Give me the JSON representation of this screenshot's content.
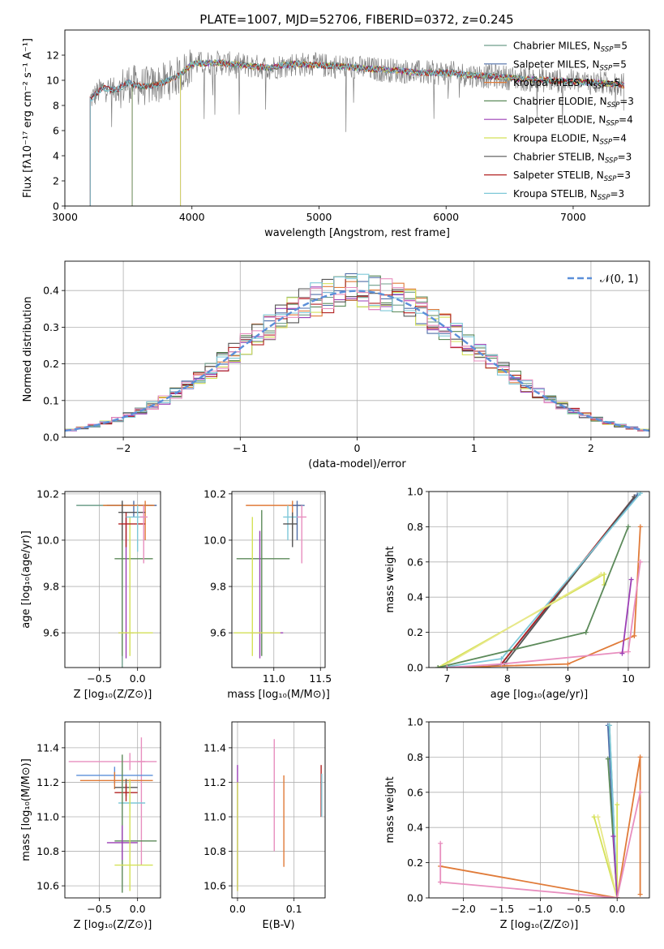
{
  "title": "PLATE=1007, MJD=52706, FIBERID=0372, z=0.245",
  "legend_colors": {
    "Chabrier MILES": "#6e9e8a",
    "Salpeter MILES": "#4f6ea8",
    "Kroupa MILES": "#e07b39",
    "Chabrier ELODIE": "#5c8a5a",
    "Salpeter ELODIE": "#9b3fb5",
    "Kroupa ELODIE": "#d4e157",
    "Chabrier STELIB": "#555555",
    "Salpeter STELIB": "#b22222",
    "Kroupa STELIB": "#7ec8d8"
  },
  "chart_data": [
    {
      "type": "line",
      "id": "spectrum",
      "xlabel": "wavelength [Angstrom, rest frame]",
      "ylabel": "Flux [fλ10⁻¹⁷ erg cm⁻² s⁻¹ A⁻¹]",
      "xlim": [
        3000,
        7600
      ],
      "ylim": [
        0,
        14
      ],
      "xticks": [
        "3000",
        "4000",
        "5000",
        "6000",
        "7000"
      ],
      "xtick_values": [
        3000,
        4000,
        5000,
        6000,
        7000
      ],
      "yticks": [
        "0",
        "2",
        "4",
        "6",
        "8",
        "10",
        "12"
      ],
      "ytick_values": [
        0,
        2,
        4,
        6,
        8,
        10,
        12
      ],
      "grid": false,
      "legend_position": "upper right",
      "legend": [
        {
          "name": "Chabrier MILES, N",
          "sub": "SSP",
          "suffix": "=5",
          "color": "#6e9e8a"
        },
        {
          "name": "Salpeter MILES, N",
          "sub": "SSP",
          "suffix": "=5",
          "color": "#4f6ea8"
        },
        {
          "name": "Kroupa MILES, N",
          "sub": "SSP",
          "suffix": "=5",
          "color": "#e07b39"
        },
        {
          "name": "Chabrier ELODIE, N",
          "sub": "SSP",
          "suffix": "=3",
          "color": "#5c8a5a"
        },
        {
          "name": "Salpeter ELODIE, N",
          "sub": "SSP",
          "suffix": "=4",
          "color": "#9b3fb5"
        },
        {
          "name": "Kroupa ELODIE, N",
          "sub": "SSP",
          "suffix": "=4",
          "color": "#d4e157"
        },
        {
          "name": "Chabrier STELIB, N",
          "sub": "SSP",
          "suffix": "=3",
          "color": "#555555"
        },
        {
          "name": "Salpeter STELIB, N",
          "sub": "SSP",
          "suffix": "=3",
          "color": "#b22222"
        },
        {
          "name": "Kroupa STELIB, N",
          "sub": "SSP",
          "suffix": "=3",
          "color": "#7ec8d8"
        }
      ],
      "observed_color": "#808080",
      "model_shape": {
        "x": [
          3200,
          3300,
          3400,
          3500,
          3600,
          3700,
          3800,
          3900,
          4000,
          4200,
          4400,
          4600,
          4800,
          5000,
          5200,
          5400,
          5600,
          5800,
          6000,
          6200,
          6400,
          6600,
          6800,
          7000,
          7200,
          7400
        ],
        "y": [
          8.5,
          9.4,
          9.2,
          9.8,
          9.5,
          9.6,
          9.9,
          10.4,
          11.3,
          11.4,
          11.2,
          11.0,
          11.3,
          11.2,
          11.1,
          10.9,
          10.8,
          10.6,
          10.6,
          10.4,
          10.3,
          10.1,
          10.0,
          9.9,
          9.8,
          9.6
        ]
      },
      "model_starts": [
        3200,
        3200,
        3530,
        3530,
        3910,
        3910,
        3200,
        3200,
        3200
      ]
    },
    {
      "type": "bar",
      "id": "residual-histogram",
      "xlabel": "(data-model)/error",
      "ylabel": "Normed distribution",
      "xlim": [
        -2.5,
        2.5
      ],
      "ylim": [
        0,
        0.48
      ],
      "xticks": [
        "−2",
        "−1",
        "0",
        "1",
        "2"
      ],
      "xtick_values": [
        -2,
        -1,
        0,
        1,
        2
      ],
      "yticks": [
        "0.0",
        "0.1",
        "0.2",
        "0.3",
        "0.4"
      ],
      "ytick_values": [
        0,
        0.1,
        0.2,
        0.3,
        0.4
      ],
      "grid": true,
      "legend_position": "upper right",
      "legend": [
        {
          "name": "𝒩(0, 1)",
          "color": "#5b8fd9",
          "style": "dashed"
        }
      ],
      "bin_edges_range": [
        -2.5,
        2.5
      ],
      "bin_width": 0.1,
      "normal_curve": {
        "mean": 0,
        "sigma": 1
      }
    },
    {
      "type": "scatter",
      "id": "age-vs-metallicity",
      "xlabel": "Z [log₁₀(Z/Z⊙)]",
      "ylabel": "age  [log₁₀(age/yr)]",
      "xlim": [
        -0.95,
        0.3
      ],
      "ylim": [
        9.45,
        10.21
      ],
      "xticks": [
        "−0.5",
        "0.0"
      ],
      "xtick_values": [
        -0.5,
        0
      ],
      "yticks": [
        "9.6",
        "9.8",
        "10.0",
        "10.2"
      ],
      "ytick_values": [
        9.6,
        9.8,
        10.0,
        10.2
      ],
      "grid": true,
      "points": [
        {
          "x": -0.2,
          "y": 10.15,
          "xerr": [
            0.6,
            0.4
          ],
          "yerr": [
            0.7,
            0.02
          ],
          "color": "#6e9e8a"
        },
        {
          "x": -0.05,
          "y": 10.15,
          "xerr": [
            0.35,
            0.3
          ],
          "yerr": [
            0.05,
            0.02
          ],
          "color": "#4f6ea8"
        },
        {
          "x": 0.1,
          "y": 10.15,
          "xerr": [
            0.55,
            0.12
          ],
          "yerr": [
            0.15,
            0.02
          ],
          "color": "#e07b39"
        },
        {
          "x": -0.2,
          "y": 9.92,
          "xerr": [
            0.1,
            0.4
          ],
          "yerr": [
            0.42,
            0.21
          ],
          "color": "#5c8a5a"
        },
        {
          "x": -0.15,
          "y": 9.6,
          "xerr": [
            0.1,
            0.1
          ],
          "yerr": [
            0.11,
            0.5
          ],
          "color": "#9b3fb5"
        },
        {
          "x": -0.1,
          "y": 9.6,
          "xerr": [
            0.15,
            0.3
          ],
          "yerr": [
            0.1,
            0.5
          ],
          "color": "#d4e157"
        },
        {
          "x": -0.2,
          "y": 10.12,
          "xerr": [
            0.05,
            0.3
          ],
          "yerr": [
            0.12,
            0.05
          ],
          "color": "#555555"
        },
        {
          "x": -0.15,
          "y": 10.07,
          "xerr": [
            0.1,
            0.25
          ],
          "yerr": [
            0.1,
            0.05
          ],
          "color": "#b22222"
        },
        {
          "x": 0.0,
          "y": 10.1,
          "xerr": [
            0.15,
            0.1
          ],
          "yerr": [
            0.15,
            0.05
          ],
          "color": "#7ec8d8"
        },
        {
          "x": 0.08,
          "y": 10.1,
          "xerr": [
            0.05,
            0.05
          ],
          "yerr": [
            0.2,
            0.05
          ],
          "color": "#e88fbf"
        }
      ]
    },
    {
      "type": "scatter",
      "id": "age-vs-mass",
      "xlabel": "mass [log₁₀(M/M⊙)]",
      "ylabel": "",
      "xlim": [
        10.55,
        11.55
      ],
      "ylim": [
        9.45,
        10.21
      ],
      "xticks": [
        "11.0",
        "11.5"
      ],
      "xtick_values": [
        11.0,
        11.5
      ],
      "yticks": [
        "9.6",
        "9.8",
        "10.0",
        "10.2"
      ],
      "ytick_values": [
        9.6,
        9.8,
        10.0,
        10.2
      ],
      "grid": true,
      "points": [
        {
          "x": 11.2,
          "y": 10.15,
          "xerr": [
            0.5,
            0.1
          ],
          "yerr": [
            0.1,
            0.02
          ],
          "color": "#e07b39"
        },
        {
          "x": 11.25,
          "y": 10.15,
          "xerr": [
            0.05,
            0.08
          ],
          "yerr": [
            0.15,
            0.02
          ],
          "color": "#4f6ea8"
        },
        {
          "x": 11.15,
          "y": 10.1,
          "xerr": [
            0.05,
            0.1
          ],
          "yerr": [
            0.1,
            0.05
          ],
          "color": "#7ec8d8"
        },
        {
          "x": 11.2,
          "y": 10.07,
          "xerr": [
            0.1,
            0.05
          ],
          "yerr": [
            0.1,
            0.05
          ],
          "color": "#555555"
        },
        {
          "x": 10.87,
          "y": 9.92,
          "xerr": [
            0.27,
            0.3
          ],
          "yerr": [
            0.42,
            0.21
          ],
          "color": "#5c8a5a"
        },
        {
          "x": 10.85,
          "y": 9.6,
          "xerr": [
            0.1,
            0.25
          ],
          "yerr": [
            0.11,
            0.44
          ],
          "color": "#9b3fb5"
        },
        {
          "x": 10.77,
          "y": 9.6,
          "xerr": [
            0.2,
            0.3
          ],
          "yerr": [
            0.1,
            0.5
          ],
          "color": "#d4e157"
        },
        {
          "x": 11.3,
          "y": 10.1,
          "xerr": [
            0.05,
            0.05
          ],
          "yerr": [
            0.2,
            0.05
          ],
          "color": "#e88fbf"
        }
      ]
    },
    {
      "type": "line",
      "id": "mass-weight-vs-age",
      "xlabel": "age  [log₁₀(age/yr)]",
      "ylabel": "mass weight",
      "xlim": [
        6.7,
        10.35
      ],
      "ylim": [
        0,
        1
      ],
      "xticks": [
        "7",
        "8",
        "9",
        "10"
      ],
      "xtick_values": [
        7,
        8,
        9,
        10
      ],
      "yticks": [
        "0.0",
        "0.2",
        "0.4",
        "0.6",
        "0.8",
        "1.0"
      ],
      "ytick_values": [
        0,
        0.2,
        0.4,
        0.6,
        0.8,
        1.0
      ],
      "grid": true,
      "series": [
        {
          "color": "#6e9e8a",
          "x": [
            7.6,
            7.9,
            10.15
          ],
          "y": [
            0.0,
            0.02,
            0.98
          ]
        },
        {
          "color": "#4f6ea8",
          "x": [
            7.6,
            7.9,
            10.15
          ],
          "y": [
            0.0,
            0.02,
            0.98
          ]
        },
        {
          "color": "#b22222",
          "x": [
            7.9,
            10.1
          ],
          "y": [
            0.02,
            0.97
          ]
        },
        {
          "color": "#555555",
          "x": [
            7.95,
            10.1
          ],
          "y": [
            0.02,
            0.97
          ]
        },
        {
          "color": "#7ec8d8",
          "x": [
            6.9,
            7.9,
            10.2
          ],
          "y": [
            0.0,
            0.05,
            0.99
          ]
        },
        {
          "color": "#d4e157",
          "x": [
            6.85,
            9.6,
            9.6
          ],
          "y": [
            0.0,
            0.53,
            0.47
          ]
        },
        {
          "color": "#e8e88a",
          "x": [
            6.9,
            9.55
          ],
          "y": [
            0.0,
            0.53
          ]
        },
        {
          "color": "#5c8a5a",
          "x": [
            6.85,
            9.3,
            10.0
          ],
          "y": [
            0.0,
            0.2,
            0.8
          ]
        },
        {
          "color": "#e07b39",
          "x": [
            7.0,
            9.0,
            10.1,
            10.2
          ],
          "y": [
            0.0,
            0.02,
            0.18,
            0.8
          ]
        },
        {
          "color": "#e88fbf",
          "x": [
            7.0,
            7.9,
            10.0,
            10.2
          ],
          "y": [
            0.0,
            0.02,
            0.09,
            0.6
          ]
        },
        {
          "color": "#9b3fb5",
          "x": [
            9.9,
            10.05
          ],
          "y": [
            0.08,
            0.5
          ]
        }
      ]
    },
    {
      "type": "scatter",
      "id": "mass-vs-metallicity",
      "xlabel": "Z [log₁₀(Z/Z⊙)]",
      "ylabel": "mass [log₁₀(M/M⊙)]",
      "xlim": [
        -0.95,
        0.3
      ],
      "ylim": [
        10.53,
        11.55
      ],
      "xticks": [
        "−0.5",
        "0.0"
      ],
      "xtick_values": [
        -0.5,
        0
      ],
      "yticks": [
        "10.6",
        "10.8",
        "11.0",
        "11.2",
        "11.4"
      ],
      "ytick_values": [
        10.6,
        10.8,
        11.0,
        11.2,
        11.4
      ],
      "grid": true,
      "points": [
        {
          "x": -0.1,
          "y": 11.32,
          "xerr": [
            0.8,
            0.35
          ],
          "yerr": [
            0.05,
            0.05
          ],
          "color": "#e88fbf"
        },
        {
          "x": 0.05,
          "y": 11.32,
          "xerr": [
            0.05,
            0.05
          ],
          "yerr": [
            0.6,
            0.14
          ],
          "color": "#e88fbf"
        },
        {
          "x": -0.3,
          "y": 11.24,
          "xerr": [
            0.5,
            0.5
          ],
          "yerr": [
            0.05,
            0.05
          ],
          "color": "#5b8fd9"
        },
        {
          "x": -0.3,
          "y": 11.21,
          "xerr": [
            0.45,
            0.5
          ],
          "yerr": [
            0.05,
            0.05
          ],
          "color": "#e07b39"
        },
        {
          "x": -0.15,
          "y": 11.17,
          "xerr": [
            0.15,
            0.15
          ],
          "yerr": [
            0.05,
            0.05
          ],
          "color": "#555555"
        },
        {
          "x": -0.15,
          "y": 11.14,
          "xerr": [
            0.15,
            0.15
          ],
          "yerr": [
            0.05,
            0.05
          ],
          "color": "#b22222"
        },
        {
          "x": -0.1,
          "y": 11.08,
          "xerr": [
            0.15,
            0.2
          ],
          "yerr": [
            0.05,
            0.05
          ],
          "color": "#7ec8d8"
        },
        {
          "x": -0.2,
          "y": 10.86,
          "xerr": [
            0.1,
            0.45
          ],
          "yerr": [
            0.3,
            0.5
          ],
          "color": "#5c8a5a"
        },
        {
          "x": -0.2,
          "y": 10.85,
          "xerr": [
            0.2,
            0.2
          ],
          "yerr": [
            0.1,
            0.1
          ],
          "color": "#9b3fb5"
        },
        {
          "x": -0.1,
          "y": 10.72,
          "xerr": [
            0.2,
            0.3
          ],
          "yerr": [
            0.15,
            0.5
          ],
          "color": "#d4e157"
        }
      ]
    },
    {
      "type": "scatter",
      "id": "mass-vs-reddening",
      "xlabel": "E(B-V)",
      "ylabel": "",
      "xlim": [
        -0.01,
        0.155
      ],
      "ylim": [
        10.53,
        11.55
      ],
      "xticks": [
        "0.0",
        "0.1"
      ],
      "xtick_values": [
        0.0,
        0.1
      ],
      "yticks": [
        "10.6",
        "10.8",
        "11.0",
        "11.2",
        "11.4"
      ],
      "ytick_values": [
        10.6,
        10.8,
        11.0,
        11.2,
        11.4
      ],
      "grid": true,
      "vertical_bars": [
        {
          "x": 0.0,
          "y0": 10.57,
          "y1": 11.3,
          "color": "#9b3fb5"
        },
        {
          "x": 0.0,
          "y0": 10.57,
          "y1": 11.2,
          "color": "#d4e157"
        },
        {
          "x": 0.065,
          "y0": 10.8,
          "y1": 11.45,
          "color": "#e88fbf"
        },
        {
          "x": 0.082,
          "y0": 10.71,
          "y1": 11.24,
          "color": "#e07b39"
        },
        {
          "x": 0.148,
          "y0": 11.0,
          "y1": 11.3,
          "color": "#b22222"
        },
        {
          "x": 0.149,
          "y0": 11.0,
          "y1": 11.25,
          "color": "#7ec8d8"
        }
      ]
    },
    {
      "type": "line",
      "id": "mass-weight-vs-metallicity",
      "xlabel": "Z [log₁₀(Z/Z⊙)]",
      "ylabel": "mass weight",
      "xlim": [
        -2.45,
        0.42
      ],
      "ylim": [
        0,
        1
      ],
      "xticks": [
        "−2.0",
        "−1.5",
        "−1.0",
        "−0.5",
        "0.0"
      ],
      "xtick_values": [
        -2.0,
        -1.5,
        -1.0,
        -0.5,
        0.0
      ],
      "yticks": [
        "0.0",
        "0.2",
        "0.4",
        "0.6",
        "0.8",
        "1.0"
      ],
      "ytick_values": [
        0,
        0.2,
        0.4,
        0.6,
        0.8,
        1.0
      ],
      "grid": true,
      "series": [
        {
          "color": "#6e9e8a",
          "x": [
            -0.1,
            0.0
          ],
          "y": [
            0.98,
            0.0
          ]
        },
        {
          "color": "#4f6ea8",
          "x": [
            -0.12,
            0.0
          ],
          "y": [
            0.98,
            0.0
          ]
        },
        {
          "color": "#7ec8d8",
          "x": [
            -0.1,
            0.0
          ],
          "y": [
            0.98,
            0.0
          ]
        },
        {
          "color": "#5c8a5a",
          "x": [
            -0.12,
            0.0
          ],
          "y": [
            0.79,
            0.0
          ]
        },
        {
          "color": "#d4e157",
          "x": [
            -0.3,
            0.0,
            0.0
          ],
          "y": [
            0.46,
            0.0,
            0.53
          ]
        },
        {
          "color": "#e8e88a",
          "x": [
            -0.25,
            0.0
          ],
          "y": [
            0.46,
            0.0
          ]
        },
        {
          "color": "#9b3fb5",
          "x": [
            -0.05,
            0.0
          ],
          "y": [
            0.35,
            0.0
          ]
        },
        {
          "color": "#e07b39",
          "x": [
            -2.3,
            0.0,
            0.3,
            0.3
          ],
          "y": [
            0.18,
            0.0,
            0.8,
            0.02
          ]
        },
        {
          "color": "#e88fbf",
          "x": [
            -2.3,
            0.0,
            0.3
          ],
          "y": [
            0.09,
            0.0,
            0.6
          ]
        },
        {
          "color": "#e88fbf",
          "x": [
            -2.3,
            -2.3
          ],
          "y": [
            0.09,
            0.31
          ]
        }
      ]
    }
  ]
}
